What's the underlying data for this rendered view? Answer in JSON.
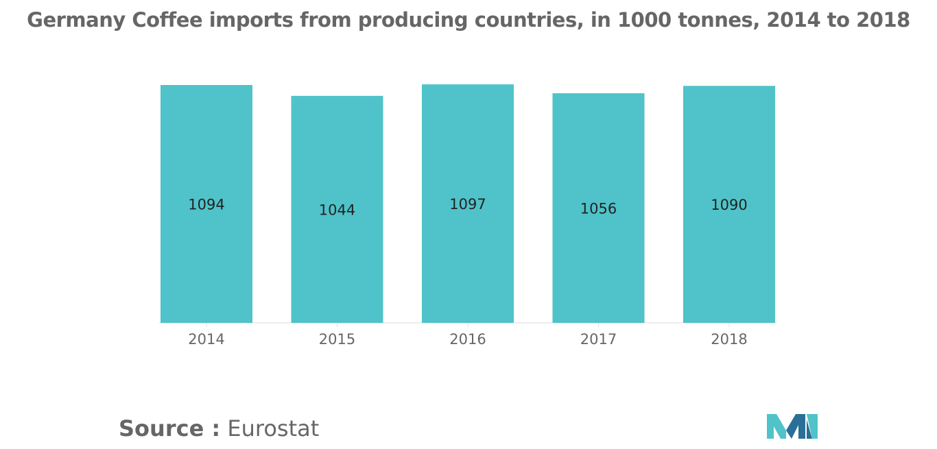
{
  "title": "Germany Coffee imports from producing countries, in 1000 tonnes, 2014 to 2018",
  "source": {
    "label": "Source :",
    "value": "Eurostat"
  },
  "colors": {
    "bar": "#4fc3c9",
    "text": "#666666",
    "label": "#222222",
    "axis": "#dddddd"
  },
  "chart_data": {
    "type": "bar",
    "categories": [
      "2014",
      "2015",
      "2016",
      "2017",
      "2018"
    ],
    "values": [
      1094,
      1044,
      1097,
      1056,
      1090
    ],
    "title": "Germany Coffee imports from producing countries, in 1000 tonnes, 2014 to 2018",
    "xlabel": "",
    "ylabel": "",
    "grid": false,
    "legend": "none",
    "data_labels": true
  }
}
